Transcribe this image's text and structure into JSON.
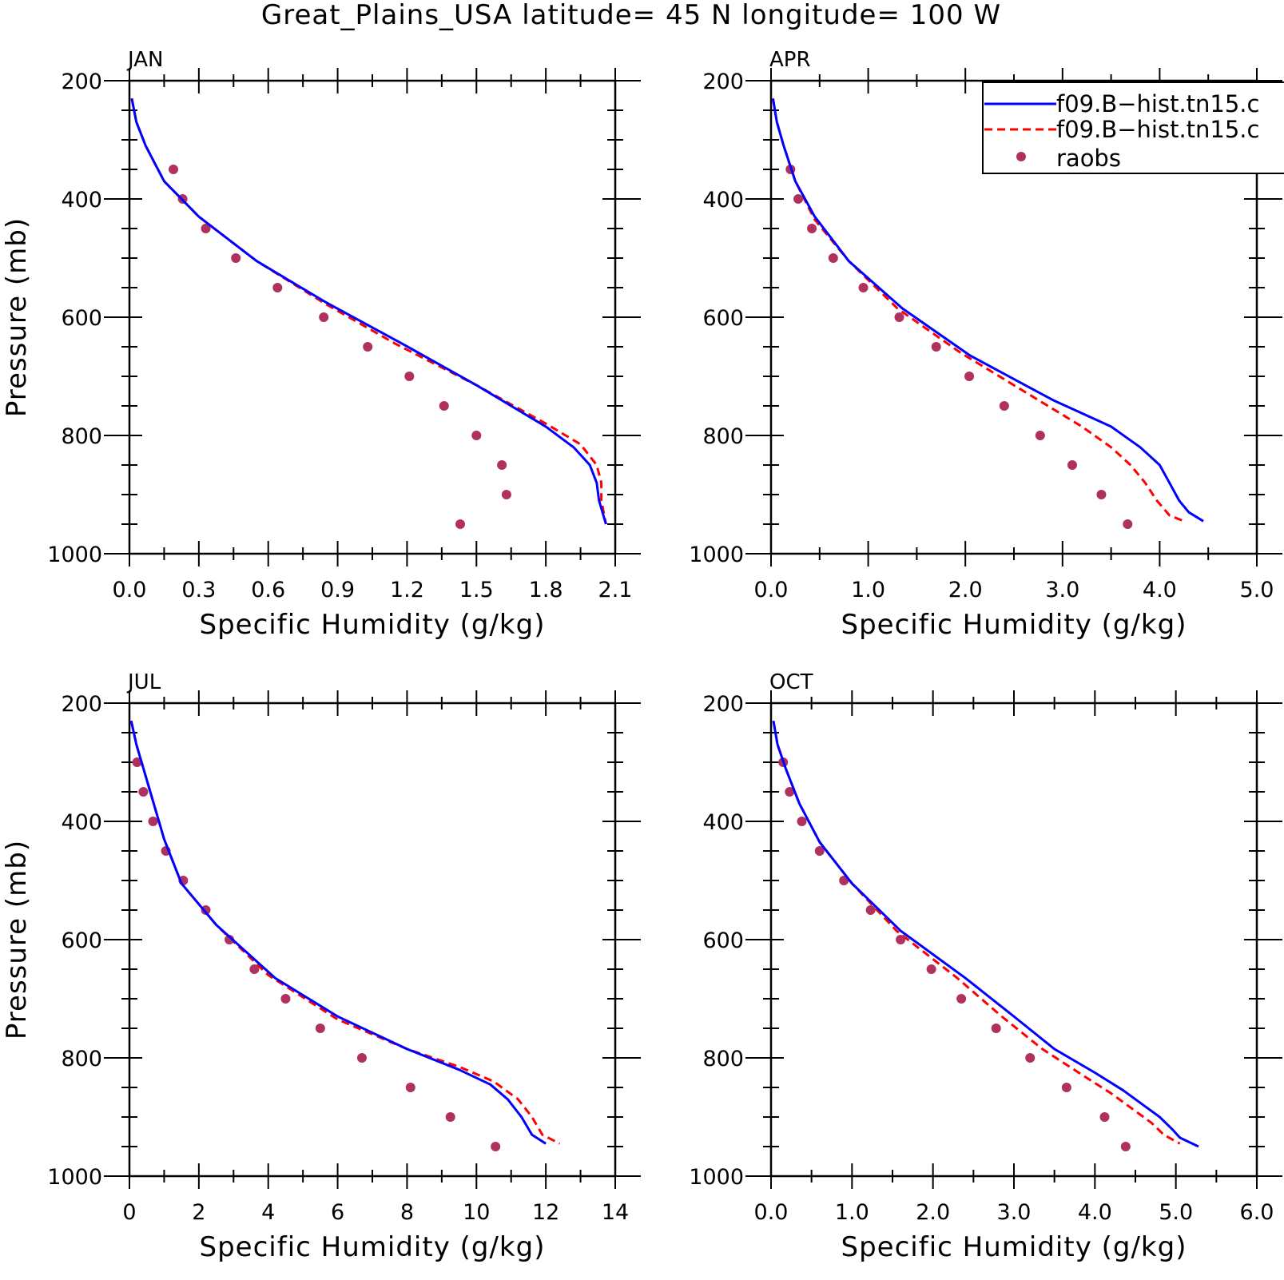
{
  "title": "Great_Plains_USA  latitude= 45 N longitude= 100 W",
  "colors": {
    "model_a": "#0000ff",
    "model_b": "#ff0000",
    "raobs": "#b03060",
    "axes": "#000000",
    "background": "#ffffff"
  },
  "legend": {
    "placement": "top-right of APR panel (clipped)",
    "entries": [
      {
        "label": "f09.B−hist.tn15.c",
        "style": "solid",
        "color": "#0000ff"
      },
      {
        "label": "f09.B−hist.tn15.c",
        "style": "dashed",
        "color": "#ff0000"
      },
      {
        "label": "raobs",
        "style": "marker",
        "color": "#b03060"
      }
    ]
  },
  "chart_data": [
    {
      "type": "line",
      "panel": "JAN",
      "title": "JAN",
      "xlabel": "Specific Humidity (g/kg)",
      "ylabel": "Pressure (mb)",
      "xlim": [
        0,
        2.1
      ],
      "ylim": [
        1000,
        200
      ],
      "y_inverted": true,
      "xticks": [
        "0.0",
        "0.3",
        "0.6",
        "0.9",
        "1.2",
        "1.5",
        "1.8",
        "2.1"
      ],
      "yticks": [
        "200",
        "400",
        "600",
        "800",
        "1000"
      ],
      "series": [
        {
          "key": "model_a",
          "style": "solid",
          "points": [
            [
              0.01,
              230
            ],
            [
              0.03,
              270
            ],
            [
              0.07,
              310
            ],
            [
              0.15,
              370
            ],
            [
              0.3,
              430
            ],
            [
              0.55,
              505
            ],
            [
              0.85,
              575
            ],
            [
              1.18,
              645
            ],
            [
              1.5,
              715
            ],
            [
              1.8,
              785
            ],
            [
              1.92,
              820
            ],
            [
              1.99,
              850
            ],
            [
              2.02,
              880
            ],
            [
              2.03,
              910
            ],
            [
              2.06,
              950
            ]
          ]
        },
        {
          "key": "model_b",
          "style": "dashed",
          "points": [
            [
              0.01,
              230
            ],
            [
              0.03,
              270
            ],
            [
              0.07,
              310
            ],
            [
              0.15,
              370
            ],
            [
              0.3,
              430
            ],
            [
              0.55,
              505
            ],
            [
              0.85,
              578
            ],
            [
              1.15,
              645
            ],
            [
              1.5,
              715
            ],
            [
              1.8,
              780
            ],
            [
              1.95,
              815
            ],
            [
              2.02,
              850
            ],
            [
              2.04,
              880
            ],
            [
              2.04,
              910
            ],
            [
              2.06,
              950
            ]
          ]
        },
        {
          "key": "raobs",
          "style": "marker",
          "points": [
            [
              0.19,
              350
            ],
            [
              0.23,
              400
            ],
            [
              0.33,
              450
            ],
            [
              0.46,
              500
            ],
            [
              0.64,
              550
            ],
            [
              0.84,
              600
            ],
            [
              1.03,
              650
            ],
            [
              1.21,
              700
            ],
            [
              1.36,
              750
            ],
            [
              1.5,
              800
            ],
            [
              1.61,
              850
            ],
            [
              1.63,
              900
            ],
            [
              1.43,
              950
            ]
          ]
        }
      ]
    },
    {
      "type": "line",
      "panel": "APR",
      "title": "APR",
      "xlabel": "Specific Humidity (g/kg)",
      "ylabel": "",
      "xlim": [
        0,
        5.0
      ],
      "ylim": [
        1000,
        200
      ],
      "y_inverted": true,
      "xticks": [
        "0.0",
        "1.0",
        "2.0",
        "3.0",
        "4.0",
        "5.0"
      ],
      "yticks": [
        "200",
        "400",
        "600",
        "800",
        "1000"
      ],
      "series": [
        {
          "key": "model_a",
          "style": "solid",
          "points": [
            [
              0.02,
              230
            ],
            [
              0.06,
              270
            ],
            [
              0.13,
              310
            ],
            [
              0.25,
              370
            ],
            [
              0.45,
              430
            ],
            [
              0.8,
              505
            ],
            [
              1.35,
              585
            ],
            [
              2.05,
              665
            ],
            [
              2.9,
              740
            ],
            [
              3.5,
              785
            ],
            [
              3.8,
              820
            ],
            [
              4.0,
              850
            ],
            [
              4.1,
              880
            ],
            [
              4.2,
              910
            ],
            [
              4.3,
              930
            ],
            [
              4.45,
              945
            ]
          ]
        },
        {
          "key": "model_b",
          "style": "dashed",
          "points": [
            [
              0.02,
              230
            ],
            [
              0.06,
              270
            ],
            [
              0.13,
              310
            ],
            [
              0.25,
              370
            ],
            [
              0.45,
              435
            ],
            [
              0.8,
              505
            ],
            [
              1.3,
              585
            ],
            [
              1.95,
              660
            ],
            [
              2.75,
              740
            ],
            [
              3.2,
              785
            ],
            [
              3.5,
              820
            ],
            [
              3.7,
              850
            ],
            [
              3.85,
              880
            ],
            [
              3.97,
              910
            ],
            [
              4.1,
              935
            ],
            [
              4.25,
              945
            ]
          ]
        },
        {
          "key": "raobs",
          "style": "marker",
          "points": [
            [
              0.2,
              350
            ],
            [
              0.28,
              400
            ],
            [
              0.42,
              450
            ],
            [
              0.64,
              500
            ],
            [
              0.95,
              550
            ],
            [
              1.32,
              600
            ],
            [
              1.7,
              650
            ],
            [
              2.04,
              700
            ],
            [
              2.4,
              750
            ],
            [
              2.77,
              800
            ],
            [
              3.1,
              850
            ],
            [
              3.4,
              900
            ],
            [
              3.67,
              950
            ]
          ]
        }
      ]
    },
    {
      "type": "line",
      "panel": "JUL",
      "title": "JUL",
      "xlabel": "Specific Humidity (g/kg)",
      "ylabel": "Pressure (mb)",
      "xlim": [
        0,
        14
      ],
      "ylim": [
        1000,
        200
      ],
      "y_inverted": true,
      "xticks": [
        "0",
        "2",
        "4",
        "6",
        "8",
        "10",
        "12",
        "14"
      ],
      "yticks": [
        "200",
        "400",
        "600",
        "800",
        "1000"
      ],
      "series": [
        {
          "key": "model_a",
          "style": "solid",
          "points": [
            [
              0.05,
              230
            ],
            [
              0.2,
              270
            ],
            [
              0.4,
              310
            ],
            [
              0.7,
              370
            ],
            [
              1.0,
              430
            ],
            [
              1.5,
              505
            ],
            [
              2.5,
              575
            ],
            [
              4.2,
              665
            ],
            [
              6.0,
              730
            ],
            [
              8.0,
              785
            ],
            [
              9.5,
              820
            ],
            [
              10.4,
              845
            ],
            [
              10.9,
              870
            ],
            [
              11.3,
              900
            ],
            [
              11.6,
              930
            ],
            [
              12.0,
              945
            ]
          ]
        },
        {
          "key": "model_b",
          "style": "dashed",
          "points": [
            [
              0.05,
              230
            ],
            [
              0.2,
              270
            ],
            [
              0.4,
              310
            ],
            [
              0.7,
              370
            ],
            [
              1.0,
              430
            ],
            [
              1.5,
              505
            ],
            [
              2.5,
              575
            ],
            [
              4.0,
              660
            ],
            [
              6.0,
              735
            ],
            [
              8.0,
              785
            ],
            [
              9.5,
              815
            ],
            [
              10.5,
              840
            ],
            [
              11.2,
              870
            ],
            [
              11.6,
              900
            ],
            [
              11.9,
              930
            ],
            [
              12.4,
              945
            ]
          ]
        },
        {
          "key": "raobs",
          "style": "marker",
          "points": [
            [
              0.22,
              300
            ],
            [
              0.4,
              350
            ],
            [
              0.68,
              400
            ],
            [
              1.05,
              450
            ],
            [
              1.55,
              500
            ],
            [
              2.2,
              550
            ],
            [
              2.88,
              600
            ],
            [
              3.6,
              650
            ],
            [
              4.5,
              700
            ],
            [
              5.5,
              750
            ],
            [
              6.7,
              800
            ],
            [
              8.1,
              850
            ],
            [
              9.25,
              900
            ],
            [
              10.55,
              950
            ]
          ]
        }
      ]
    },
    {
      "type": "line",
      "panel": "OCT",
      "title": "OCT",
      "xlabel": "Specific Humidity (g/kg)",
      "ylabel": "",
      "xlim": [
        0,
        6.0
      ],
      "ylim": [
        1000,
        200
      ],
      "y_inverted": true,
      "xticks": [
        "0.0",
        "1.0",
        "2.0",
        "3.0",
        "4.0",
        "5.0",
        "6.0"
      ],
      "yticks": [
        "200",
        "400",
        "600",
        "800",
        "1000"
      ],
      "series": [
        {
          "key": "model_a",
          "style": "solid",
          "points": [
            [
              0.03,
              230
            ],
            [
              0.08,
              270
            ],
            [
              0.18,
              310
            ],
            [
              0.35,
              370
            ],
            [
              0.6,
              435
            ],
            [
              1.0,
              505
            ],
            [
              1.6,
              585
            ],
            [
              2.4,
              665
            ],
            [
              3.0,
              730
            ],
            [
              3.5,
              785
            ],
            [
              4.0,
              825
            ],
            [
              4.35,
              855
            ],
            [
              4.6,
              880
            ],
            [
              4.8,
              900
            ],
            [
              4.95,
              920
            ],
            [
              5.05,
              935
            ],
            [
              5.28,
              950
            ]
          ]
        },
        {
          "key": "model_b",
          "style": "dashed",
          "points": [
            [
              0.03,
              230
            ],
            [
              0.08,
              270
            ],
            [
              0.18,
              310
            ],
            [
              0.35,
              370
            ],
            [
              0.6,
              435
            ],
            [
              1.0,
              505
            ],
            [
              1.55,
              585
            ],
            [
              2.3,
              665
            ],
            [
              2.85,
              730
            ],
            [
              3.35,
              785
            ],
            [
              3.8,
              825
            ],
            [
              4.2,
              860
            ],
            [
              4.5,
              890
            ],
            [
              4.7,
              910
            ],
            [
              4.85,
              930
            ],
            [
              5.05,
              945
            ]
          ]
        },
        {
          "key": "raobs",
          "style": "marker",
          "points": [
            [
              0.15,
              300
            ],
            [
              0.23,
              350
            ],
            [
              0.38,
              400
            ],
            [
              0.6,
              450
            ],
            [
              0.9,
              500
            ],
            [
              1.23,
              550
            ],
            [
              1.6,
              600
            ],
            [
              1.98,
              650
            ],
            [
              2.35,
              700
            ],
            [
              2.78,
              750
            ],
            [
              3.2,
              800
            ],
            [
              3.65,
              850
            ],
            [
              4.12,
              900
            ],
            [
              4.38,
              950
            ]
          ]
        }
      ]
    }
  ]
}
